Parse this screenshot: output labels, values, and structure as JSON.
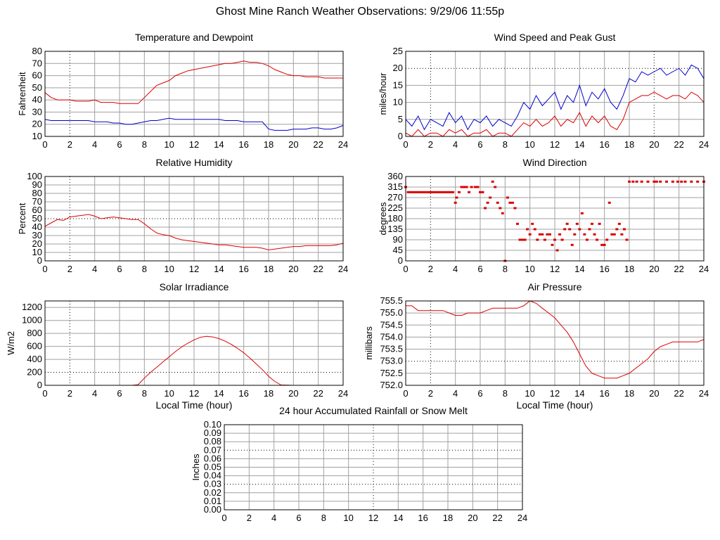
{
  "page_title": "Ghost Mine Ranch Weather Observations: 9/29/06 11:55p",
  "colors": {
    "red": "#dd0000",
    "blue": "#0000cc",
    "grid": "#a0a0a0",
    "axis": "#000000"
  },
  "chart_data": [
    {
      "id": "temp",
      "type": "line",
      "title": "Temperature and Dewpoint",
      "ylabel": "Fahrenheit",
      "xlabel": "",
      "xlim": [
        0,
        24
      ],
      "ylim": [
        10,
        80
      ],
      "xticks": [
        "0",
        "2",
        "4",
        "6",
        "8",
        "10",
        "12",
        "14",
        "16",
        "18",
        "20",
        "22",
        "24"
      ],
      "yticks": [
        "10",
        "20",
        "30",
        "40",
        "50",
        "60",
        "70",
        "80"
      ],
      "ytick_values": [
        10,
        20,
        30,
        40,
        50,
        60,
        70,
        80
      ],
      "x": [
        0,
        0.5,
        1,
        1.5,
        2,
        2.5,
        3,
        3.5,
        4,
        4.5,
        5,
        5.5,
        6,
        6.5,
        7,
        7.5,
        8,
        8.5,
        9,
        9.5,
        10,
        10.5,
        11,
        11.5,
        12,
        12.5,
        13,
        13.5,
        14,
        14.5,
        15,
        15.5,
        16,
        16.5,
        17,
        17.5,
        18,
        18.5,
        19,
        19.5,
        20,
        20.5,
        21,
        21.5,
        22,
        22.5,
        23,
        23.5,
        24
      ],
      "series": [
        {
          "color": "red",
          "values": [
            46,
            42,
            40,
            40,
            40,
            39,
            39,
            39,
            40,
            38,
            38,
            38,
            37,
            37,
            37,
            37,
            42,
            47,
            52,
            54,
            56,
            60,
            62,
            64,
            65,
            66,
            67,
            68,
            69,
            70,
            70,
            71,
            72,
            71,
            71,
            70,
            68,
            65,
            63,
            61,
            60,
            60,
            59,
            59,
            59,
            58,
            58,
            58,
            58
          ]
        },
        {
          "color": "blue",
          "values": [
            24,
            23,
            23,
            23,
            23,
            23,
            23,
            23,
            22,
            22,
            22,
            21,
            21,
            20,
            20,
            21,
            22,
            23,
            23,
            24,
            25,
            24,
            24,
            24,
            24,
            24,
            24,
            24,
            24,
            23,
            23,
            23,
            22,
            22,
            22,
            22,
            16,
            15,
            15,
            15,
            16,
            16,
            16,
            17,
            17,
            16,
            16,
            17,
            19
          ]
        }
      ]
    },
    {
      "id": "wind",
      "type": "line",
      "title": "Wind Speed and Peak Gust",
      "ylabel": "miles/hour",
      "xlabel": "",
      "xlim": [
        0,
        24
      ],
      "ylim": [
        0,
        25
      ],
      "xticks": [
        "0",
        "2",
        "4",
        "6",
        "8",
        "10",
        "12",
        "14",
        "16",
        "18",
        "20",
        "22",
        "24"
      ],
      "yticks": [
        "0",
        "5",
        "10",
        "15",
        "20",
        "25"
      ],
      "ytick_values": [
        0,
        5,
        10,
        15,
        20,
        25
      ],
      "x": [
        0,
        0.5,
        1,
        1.5,
        2,
        2.5,
        3,
        3.5,
        4,
        4.5,
        5,
        5.5,
        6,
        6.5,
        7,
        7.5,
        8,
        8.5,
        9,
        9.5,
        10,
        10.5,
        11,
        11.5,
        12,
        12.5,
        13,
        13.5,
        14,
        14.5,
        15,
        15.5,
        16,
        16.5,
        17,
        17.5,
        18,
        18.5,
        19,
        19.5,
        20,
        20.5,
        21,
        21.5,
        22,
        22.5,
        23,
        23.5,
        24
      ],
      "series": [
        {
          "color": "blue",
          "values": [
            5,
            3,
            6,
            2,
            5,
            4,
            3,
            7,
            4,
            6,
            2,
            5,
            4,
            6,
            3,
            5,
            4,
            3,
            6,
            10,
            8,
            12,
            9,
            11,
            13,
            8,
            12,
            10,
            15,
            9,
            13,
            11,
            14,
            10,
            8,
            12,
            17,
            16,
            19,
            18,
            19,
            20,
            18,
            19,
            20,
            18,
            21,
            20,
            17
          ]
        },
        {
          "color": "red",
          "values": [
            1,
            0,
            2,
            0,
            1,
            1,
            0,
            2,
            1,
            2,
            0,
            1,
            1,
            2,
            0,
            1,
            1,
            0,
            2,
            4,
            3,
            5,
            3,
            4,
            6,
            3,
            5,
            4,
            7,
            3,
            6,
            4,
            6,
            3,
            2,
            5,
            10,
            11,
            12,
            12,
            13,
            12,
            11,
            12,
            12,
            11,
            13,
            12,
            10
          ]
        }
      ]
    },
    {
      "id": "rh",
      "type": "line",
      "title": "Relative Humidity",
      "ylabel": "Percent",
      "xlabel": "",
      "xlim": [
        0,
        24
      ],
      "ylim": [
        0,
        100
      ],
      "xticks": [
        "0",
        "2",
        "4",
        "6",
        "8",
        "10",
        "12",
        "14",
        "16",
        "18",
        "20",
        "22",
        "24"
      ],
      "yticks": [
        "0",
        "10",
        "20",
        "30",
        "40",
        "50",
        "60",
        "70",
        "80",
        "90",
        "100"
      ],
      "ytick_values": [
        0,
        10,
        20,
        30,
        40,
        50,
        60,
        70,
        80,
        90,
        100
      ],
      "x": [
        0,
        0.5,
        1,
        1.5,
        2,
        2.5,
        3,
        3.5,
        4,
        4.5,
        5,
        5.5,
        6,
        6.5,
        7,
        7.5,
        8,
        8.5,
        9,
        9.5,
        10,
        10.5,
        11,
        11.5,
        12,
        12.5,
        13,
        13.5,
        14,
        14.5,
        15,
        15.5,
        16,
        16.5,
        17,
        17.5,
        18,
        18.5,
        19,
        19.5,
        20,
        20.5,
        21,
        21.5,
        22,
        22.5,
        23,
        23.5,
        24
      ],
      "series": [
        {
          "color": "red",
          "values": [
            41,
            45,
            49,
            48,
            52,
            53,
            54,
            55,
            53,
            50,
            51,
            52,
            51,
            50,
            49,
            49,
            44,
            38,
            33,
            31,
            30,
            27,
            25,
            24,
            23,
            22,
            21,
            20,
            19,
            19,
            18,
            17,
            16,
            16,
            16,
            15,
            13,
            14,
            15,
            16,
            17,
            17,
            18,
            18,
            18,
            18,
            18,
            19,
            21
          ]
        }
      ]
    },
    {
      "id": "dir",
      "type": "scatter",
      "title": "Wind Direction",
      "ylabel": "degrees",
      "xlabel": "",
      "xlim": [
        0,
        24
      ],
      "ylim": [
        0,
        360
      ],
      "xticks": [
        "0",
        "2",
        "4",
        "6",
        "8",
        "10",
        "12",
        "14",
        "16",
        "18",
        "20",
        "22",
        "24"
      ],
      "yticks": [
        "0",
        "45",
        "90",
        "135",
        "180",
        "225",
        "270",
        "315",
        "360"
      ],
      "ytick_values": [
        0,
        45,
        90,
        135,
        180,
        225,
        270,
        315,
        360
      ],
      "series": [
        {
          "color": "red",
          "x": [
            0,
            0.2,
            0.4,
            0.6,
            0.8,
            1,
            1.2,
            1.4,
            1.6,
            1.8,
            2,
            2.2,
            2.4,
            2.6,
            2.8,
            3,
            3.2,
            3.4,
            3.6,
            3.8,
            4,
            4.1,
            4.3,
            4.5,
            4.7,
            4.9,
            5.1,
            5.3,
            5.6,
            5.8,
            6,
            6.2,
            6.4,
            6.6,
            6.8,
            7,
            7.2,
            7.4,
            7.6,
            7.8,
            8,
            8.2,
            8.4,
            8.6,
            8.8,
            9,
            9.2,
            9.4,
            9.6,
            9.8,
            10,
            10.2,
            10.4,
            10.6,
            10.8,
            11,
            11.2,
            11.4,
            11.6,
            11.8,
            12,
            12.2,
            12.4,
            12.6,
            12.8,
            13,
            13.2,
            13.4,
            13.6,
            13.8,
            14,
            14.2,
            14.4,
            14.6,
            14.8,
            15,
            15.2,
            15.4,
            15.6,
            15.8,
            16,
            16.2,
            16.4,
            16.6,
            16.8,
            17,
            17.2,
            17.4,
            17.6,
            17.8,
            18,
            18.3,
            18.6,
            19,
            19.5,
            20,
            20.2,
            20.5,
            21,
            21.5,
            21.9,
            22.2,
            22.5,
            23,
            23.5,
            24
          ],
          "values": [
            315,
            293,
            293,
            293,
            293,
            293,
            293,
            293,
            293,
            293,
            293,
            293,
            293,
            293,
            293,
            293,
            293,
            293,
            293,
            293,
            248,
            270,
            293,
            315,
            315,
            315,
            293,
            315,
            315,
            315,
            293,
            293,
            225,
            248,
            270,
            338,
            315,
            248,
            225,
            203,
            0,
            270,
            248,
            248,
            225,
            158,
            90,
            90,
            90,
            135,
            113,
            158,
            135,
            90,
            113,
            113,
            90,
            113,
            113,
            68,
            90,
            45,
            113,
            90,
            135,
            158,
            135,
            68,
            113,
            158,
            135,
            203,
            113,
            90,
            135,
            158,
            113,
            90,
            158,
            68,
            68,
            90,
            248,
            113,
            113,
            135,
            158,
            113,
            135,
            90,
            338,
            338,
            338,
            338,
            338,
            338,
            338,
            338,
            338,
            338,
            338,
            338,
            338,
            338,
            338,
            338
          ]
        }
      ]
    },
    {
      "id": "solar",
      "type": "line",
      "title": "Solar Irradiance",
      "ylabel": "W/m2",
      "xlabel": "Local Time (hour)",
      "xlim": [
        0,
        24
      ],
      "ylim": [
        0,
        1300
      ],
      "xticks": [
        "0",
        "2",
        "4",
        "6",
        "8",
        "10",
        "12",
        "14",
        "16",
        "18",
        "20",
        "22",
        "24"
      ],
      "yticks": [
        "0",
        "200",
        "400",
        "600",
        "800",
        "1000",
        "1200"
      ],
      "ytick_values": [
        0,
        200,
        400,
        600,
        800,
        1000,
        1200
      ],
      "x": [
        0,
        1,
        2,
        3,
        4,
        5,
        6,
        7,
        7.5,
        8,
        8.5,
        9,
        9.5,
        10,
        10.5,
        11,
        11.5,
        12,
        12.5,
        13,
        13.5,
        14,
        14.5,
        15,
        15.5,
        16,
        16.5,
        17,
        17.5,
        18,
        18.5,
        19,
        20,
        21,
        22,
        23,
        24
      ],
      "series": [
        {
          "color": "red",
          "values": [
            0,
            0,
            0,
            0,
            0,
            0,
            0,
            0,
            10,
            110,
            200,
            280,
            360,
            440,
            520,
            590,
            650,
            700,
            740,
            755,
            745,
            720,
            680,
            630,
            570,
            500,
            420,
            330,
            240,
            140,
            60,
            5,
            0,
            0,
            0,
            0,
            0
          ]
        }
      ]
    },
    {
      "id": "pres",
      "type": "line",
      "title": "Air Pressure",
      "ylabel": "millibars",
      "xlabel": "Local Time (hour)",
      "xlim": [
        0,
        24
      ],
      "ylim": [
        752.0,
        755.5
      ],
      "xticks": [
        "0",
        "2",
        "4",
        "6",
        "8",
        "10",
        "12",
        "14",
        "16",
        "18",
        "20",
        "22",
        "24"
      ],
      "yticks": [
        "752.0",
        "752.5",
        "753.0",
        "753.5",
        "754.0",
        "754.5",
        "755.0",
        "755.5"
      ],
      "ytick_values": [
        752.0,
        752.5,
        753.0,
        753.5,
        754.0,
        754.5,
        755.0,
        755.5
      ],
      "x": [
        0,
        0.5,
        1,
        1.5,
        2,
        2.5,
        3,
        3.5,
        4,
        4.5,
        5,
        5.5,
        6,
        6.5,
        7,
        7.5,
        8,
        8.5,
        9,
        9.5,
        10,
        10.5,
        11,
        11.5,
        12,
        12.5,
        13,
        13.5,
        14,
        14.5,
        15,
        15.5,
        16,
        16.5,
        17,
        17.5,
        18,
        18.5,
        19,
        19.5,
        20,
        20.5,
        21,
        21.5,
        22,
        22.5,
        23,
        23.5,
        24
      ],
      "series": [
        {
          "color": "red",
          "values": [
            755.3,
            755.3,
            755.1,
            755.1,
            755.1,
            755.1,
            755.1,
            755.0,
            754.9,
            754.9,
            755.0,
            755.0,
            755.0,
            755.1,
            755.2,
            755.2,
            755.2,
            755.2,
            755.2,
            755.3,
            755.5,
            755.4,
            755.2,
            755.0,
            754.8,
            754.5,
            754.2,
            753.8,
            753.3,
            752.8,
            752.5,
            752.4,
            752.3,
            752.3,
            752.3,
            752.4,
            752.5,
            752.7,
            752.9,
            753.1,
            753.4,
            753.6,
            753.7,
            753.8,
            753.8,
            753.8,
            753.8,
            753.8,
            753.9
          ]
        }
      ]
    },
    {
      "id": "rain",
      "type": "line",
      "title": "24 hour Accumulated Rainfall or Snow Melt",
      "ylabel": "Inches",
      "xlabel": "",
      "xlim": [
        0,
        24
      ],
      "ylim": [
        0,
        0.1
      ],
      "xticks": [
        "0",
        "2",
        "4",
        "6",
        "8",
        "10",
        "12",
        "14",
        "16",
        "18",
        "20",
        "22",
        "24"
      ],
      "yticks": [
        "0.00",
        "0.01",
        "0.02",
        "0.03",
        "0.04",
        "0.05",
        "0.06",
        "0.07",
        "0.08",
        "0.09",
        "0.10"
      ],
      "ytick_values": [
        0,
        0.01,
        0.02,
        0.03,
        0.04,
        0.05,
        0.06,
        0.07,
        0.08,
        0.09,
        0.1
      ],
      "x": [
        0,
        24
      ],
      "series": [
        {
          "color": "red",
          "values": [
            0,
            0
          ]
        }
      ]
    }
  ]
}
